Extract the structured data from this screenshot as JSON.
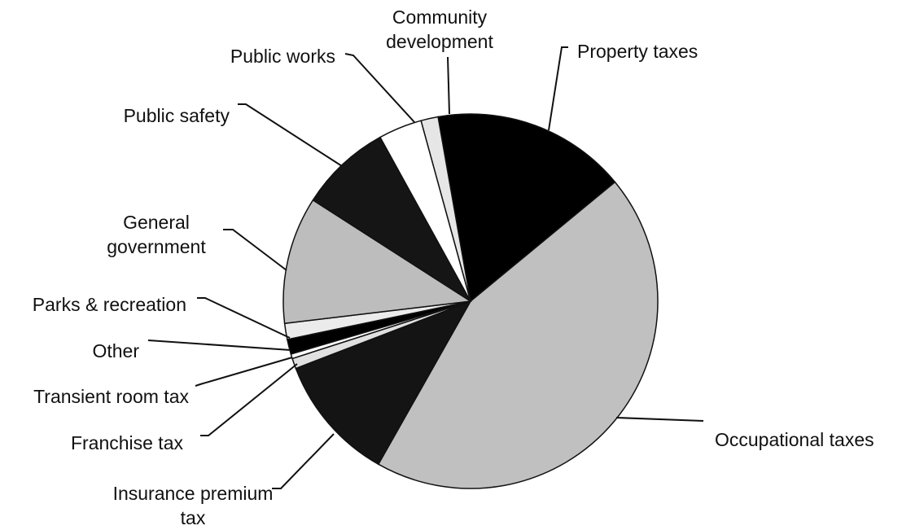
{
  "chart_data": {
    "type": "pie",
    "title": "",
    "slices": [
      {
        "label": "Property taxes",
        "value": 17.0,
        "color": "#000000"
      },
      {
        "label": "Occupational taxes",
        "value": 44.7,
        "color": "#c0c0c0"
      },
      {
        "label": "Insurance premium tax",
        "value": 11.1,
        "color": "#141414"
      },
      {
        "label": "Franchise tax",
        "value": 0.9,
        "color": "#e0e0e0"
      },
      {
        "label": "Transient room tax",
        "value": 0.4,
        "color": "#ffffff"
      },
      {
        "label": "Other",
        "value": 1.3,
        "color": "#000000"
      },
      {
        "label": "Parks & recreation",
        "value": 1.4,
        "color": "#ebebeb"
      },
      {
        "label": "General government",
        "value": 11.1,
        "color": "#bdbdbd"
      },
      {
        "label": "Public safety",
        "value": 8.0,
        "color": "#151515"
      },
      {
        "label": "Public works",
        "value": 3.8,
        "color": "#ffffff"
      },
      {
        "label": "Community development",
        "value": 1.5,
        "color": "#e6e6e6"
      }
    ],
    "legend": "none"
  }
}
